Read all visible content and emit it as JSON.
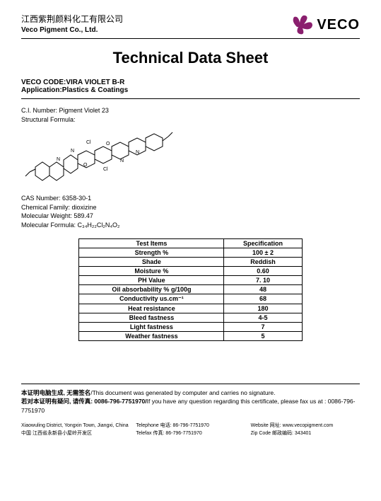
{
  "header": {
    "company_cn": "江西紫荆颜料化工有限公司",
    "company_en": "Veco Pigment Co., Ltd.",
    "logo_text": "VECO",
    "logo_color": "#8a1f6e"
  },
  "title": "Technical Data Sheet",
  "code_label": "VECO CODE:",
  "code_value": "VIRA VIOLET B-R",
  "application_label": "Application:",
  "application_value": "Plastics & Coatings",
  "ci_number_label": "C.I. Number:",
  "ci_number_value": "Pigment Violet 23",
  "structural_formula_label": "Structural Formula:",
  "cas_label": "CAS Number:",
  "cas_value": "6358-30-1",
  "family_label": "Chemical Family:",
  "family_value": "dioxizine",
  "mw_label": "Molecular Weight:",
  "mw_value": "589.47",
  "mf_label": "Molecular Formula:",
  "mf_value": "C₃₄H₂₂Cl₂N₄O₂",
  "table": {
    "header_left": "Test Items",
    "header_right": "Specification",
    "rows": [
      {
        "item": "Strength %",
        "spec": "100 ± 2"
      },
      {
        "item": "Shade",
        "spec": "Reddish"
      },
      {
        "item": "Moisture %",
        "spec": "0.60"
      },
      {
        "item": "PH Value",
        "spec": "7. 10"
      },
      {
        "item": "Oil absorbability % g/100g",
        "spec": "48"
      },
      {
        "item": "Conductivity us.cm⁻¹",
        "spec": "68"
      },
      {
        "item": "Heat resistance",
        "spec": "180"
      },
      {
        "item": "Bleed fastness",
        "spec": "4-5"
      },
      {
        "item": "Light fastness",
        "spec": "7"
      },
      {
        "item": "Weather fastness",
        "spec": "5"
      }
    ]
  },
  "footnote1_cn": "本证明电脑生成, 无需签名",
  "footnote1_en": "/This document was generated by computer and carries no signature.",
  "footnote2_cn": "若对本证明有疑问, 请传真:",
  "footnote2_mid": " 0086-796-7751970/",
  "footnote2_en": "If you have any question regarding this certificate, please fax us at : 0086-796-7751970",
  "footer": {
    "addr1_en": "Xiaowuling District, Yongxin Town, Jiangxi, China",
    "addr1_cn": "中国 江西省永新县小屋岭开发区",
    "tel_label": "Telephone 电话:",
    "tel_val": "86-796-7751970",
    "fax_label": "Telefax 传真:",
    "fax_val": "86-796-7751970",
    "web_label": "Website 网址:",
    "web_val": "www.vecopigment.com",
    "zip_label": "Zip Code 邮政编码:",
    "zip_val": "343401"
  },
  "colors": {
    "text": "#000000",
    "background": "#ffffff",
    "border": "#000000",
    "logo_accent": "#8a1f6e"
  }
}
